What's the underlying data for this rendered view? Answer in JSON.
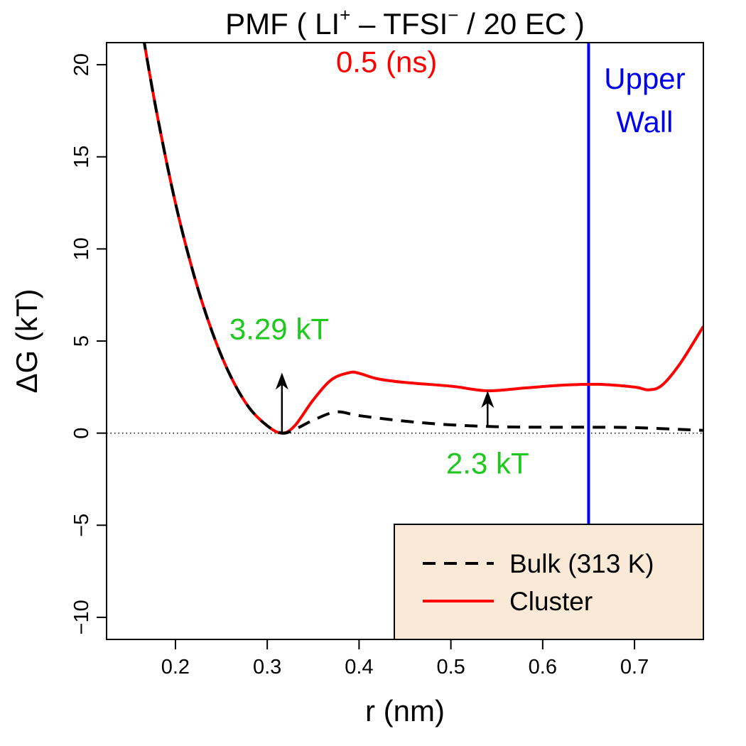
{
  "chart_data": {
    "type": "line",
    "title": {
      "prefix": "PMF ( LI",
      "cation_sup": "+",
      "middle": " – TFSI",
      "anion_sup": "−",
      "suffix": " / 20 EC )"
    },
    "xlabel": "r (nm)",
    "ylabel": "ΔG (kT)",
    "xlim": [
      0.125,
      0.775
    ],
    "ylim": [
      -11.2,
      21.2
    ],
    "xticks": [
      0.2,
      0.3,
      0.4,
      0.5,
      0.6,
      0.7
    ],
    "xtick_labels": [
      "0.2",
      "0.3",
      "0.4",
      "0.5",
      "0.6",
      "0.7"
    ],
    "yticks": [
      -10,
      -5,
      0,
      5,
      10,
      15,
      20
    ],
    "ytick_labels": [
      "−10",
      "−5",
      "0",
      "5",
      "10",
      "15",
      "20"
    ],
    "zero_line": {
      "y": 0,
      "style": "dotted"
    },
    "series": [
      {
        "name": "Bulk (313 K)",
        "color": "#000000",
        "style": "dashed",
        "x": [
          0.165,
          0.18,
          0.2,
          0.22,
          0.24,
          0.26,
          0.28,
          0.3,
          0.316,
          0.33,
          0.35,
          0.375,
          0.4,
          0.45,
          0.5,
          0.55,
          0.6,
          0.65,
          0.7,
          0.775
        ],
        "y": [
          21.5,
          17.3,
          12.5,
          8.6,
          5.5,
          3.1,
          1.4,
          0.4,
          0.0,
          0.2,
          0.7,
          1.15,
          0.95,
          0.65,
          0.45,
          0.35,
          0.32,
          0.32,
          0.3,
          0.15
        ]
      },
      {
        "name": "Cluster",
        "color": "#ff0000",
        "style": "solid",
        "x": [
          0.165,
          0.18,
          0.2,
          0.22,
          0.24,
          0.26,
          0.28,
          0.3,
          0.316,
          0.33,
          0.35,
          0.37,
          0.39,
          0.4,
          0.42,
          0.45,
          0.5,
          0.54,
          0.58,
          0.62,
          0.66,
          0.7,
          0.715,
          0.73,
          0.75,
          0.775
        ],
        "y": [
          21.5,
          17.3,
          12.5,
          8.6,
          5.5,
          3.1,
          1.4,
          0.4,
          0.0,
          0.4,
          1.8,
          2.9,
          3.29,
          3.25,
          2.95,
          2.75,
          2.55,
          2.3,
          2.45,
          2.6,
          2.65,
          2.5,
          2.35,
          2.6,
          3.8,
          5.8
        ]
      }
    ],
    "vertical_line": {
      "x": 0.65,
      "color": "#0000ee",
      "label_lines": [
        "Upper",
        "Wall"
      ]
    },
    "arrows": [
      {
        "x": 0.316,
        "y_from": 0,
        "y_to": 3.29,
        "color": "#000000"
      },
      {
        "x": 0.54,
        "y_from": 0.35,
        "y_to": 2.3,
        "color": "#000000"
      }
    ],
    "annotations": [
      {
        "text": "0.5 (ns)",
        "color": "#ff0000",
        "x": 0.43,
        "y": 19.6
      },
      {
        "text": "3.29 kT",
        "color": "#1ec81e",
        "x": 0.313,
        "y": 5.1
      },
      {
        "text": "2.3 kT",
        "color": "#1ec81e",
        "x": 0.54,
        "y": -2.2
      }
    ],
    "legend": {
      "position": "bottom-right",
      "background": "#fae9d6",
      "entries": [
        {
          "label": "Bulk (313 K)",
          "color": "#000000",
          "style": "dashed"
        },
        {
          "label": "Cluster",
          "color": "#ff0000",
          "style": "solid"
        }
      ]
    }
  }
}
